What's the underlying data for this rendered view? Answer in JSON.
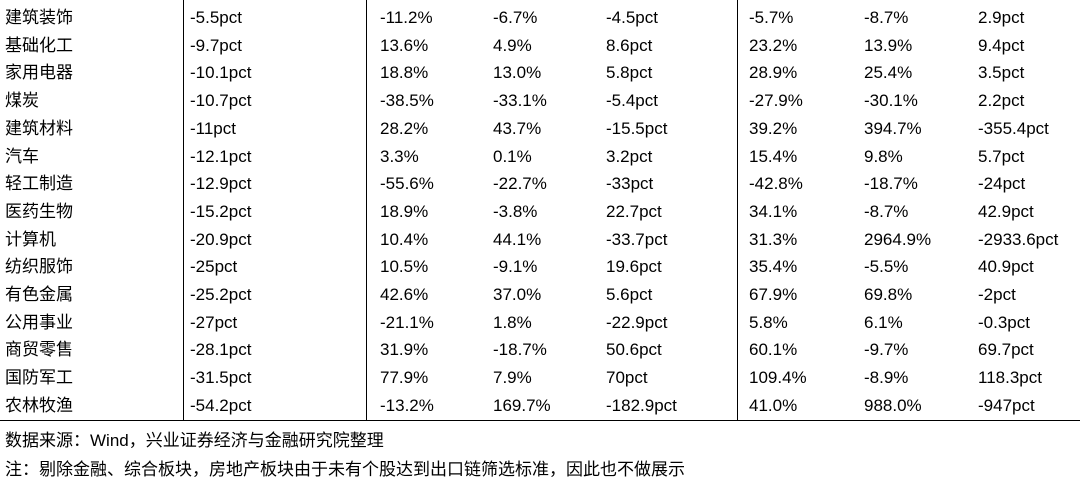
{
  "table": {
    "rows": [
      [
        "建筑装饰",
        "-5.5pct",
        "-11.2%",
        "-6.7%",
        "-4.5pct",
        "-5.7%",
        "-8.7%",
        "2.9pct"
      ],
      [
        "基础化工",
        "-9.7pct",
        "13.6%",
        "4.9%",
        "8.6pct",
        "23.2%",
        "13.9%",
        "9.4pct"
      ],
      [
        "家用电器",
        "-10.1pct",
        "18.8%",
        "13.0%",
        "5.8pct",
        "28.9%",
        "25.4%",
        "3.5pct"
      ],
      [
        "煤炭",
        "-10.7pct",
        "-38.5%",
        "-33.1%",
        "-5.4pct",
        "-27.9%",
        "-30.1%",
        "2.2pct"
      ],
      [
        "建筑材料",
        "-11pct",
        "28.2%",
        "43.7%",
        "-15.5pct",
        "39.2%",
        "394.7%",
        "-355.4pct"
      ],
      [
        "汽车",
        "-12.1pct",
        "3.3%",
        "0.1%",
        "3.2pct",
        "15.4%",
        "9.8%",
        "5.7pct"
      ],
      [
        "轻工制造",
        "-12.9pct",
        "-55.6%",
        "-22.7%",
        "-33pct",
        "-42.8%",
        "-18.7%",
        "-24pct"
      ],
      [
        "医药生物",
        "-15.2pct",
        "18.9%",
        "-3.8%",
        "22.7pct",
        "34.1%",
        "-8.7%",
        "42.9pct"
      ],
      [
        "计算机",
        "-20.9pct",
        "10.4%",
        "44.1%",
        "-33.7pct",
        "31.3%",
        "2964.9%",
        "-2933.6pct"
      ],
      [
        "纺织服饰",
        "-25pct",
        "10.5%",
        "-9.1%",
        "19.6pct",
        "35.4%",
        "-5.5%",
        "40.9pct"
      ],
      [
        "有色金属",
        "-25.2pct",
        "42.6%",
        "37.0%",
        "5.6pct",
        "67.9%",
        "69.8%",
        "-2pct"
      ],
      [
        "公用事业",
        "-27pct",
        "-21.1%",
        "1.8%",
        "-22.9pct",
        "5.8%",
        "6.1%",
        "-0.3pct"
      ],
      [
        "商贸零售",
        "-28.1pct",
        "31.9%",
        "-18.7%",
        "50.6pct",
        "60.1%",
        "-9.7%",
        "69.7pct"
      ],
      [
        "国防军工",
        "-31.5pct",
        "77.9%",
        "7.9%",
        "70pct",
        "109.4%",
        "-8.9%",
        "118.3pct"
      ],
      [
        "农林牧渔",
        "-54.2pct",
        "-13.2%",
        "169.7%",
        "-182.9pct",
        "41.0%",
        "988.0%",
        "-947pct"
      ]
    ]
  },
  "notes": [
    "数据来源：Wind，兴业证券经济与金融研究院整理",
    "注：剔除金融、综合板块，房地产板块由于未有个股达到出口链筛选标准，因此也不做展示"
  ]
}
